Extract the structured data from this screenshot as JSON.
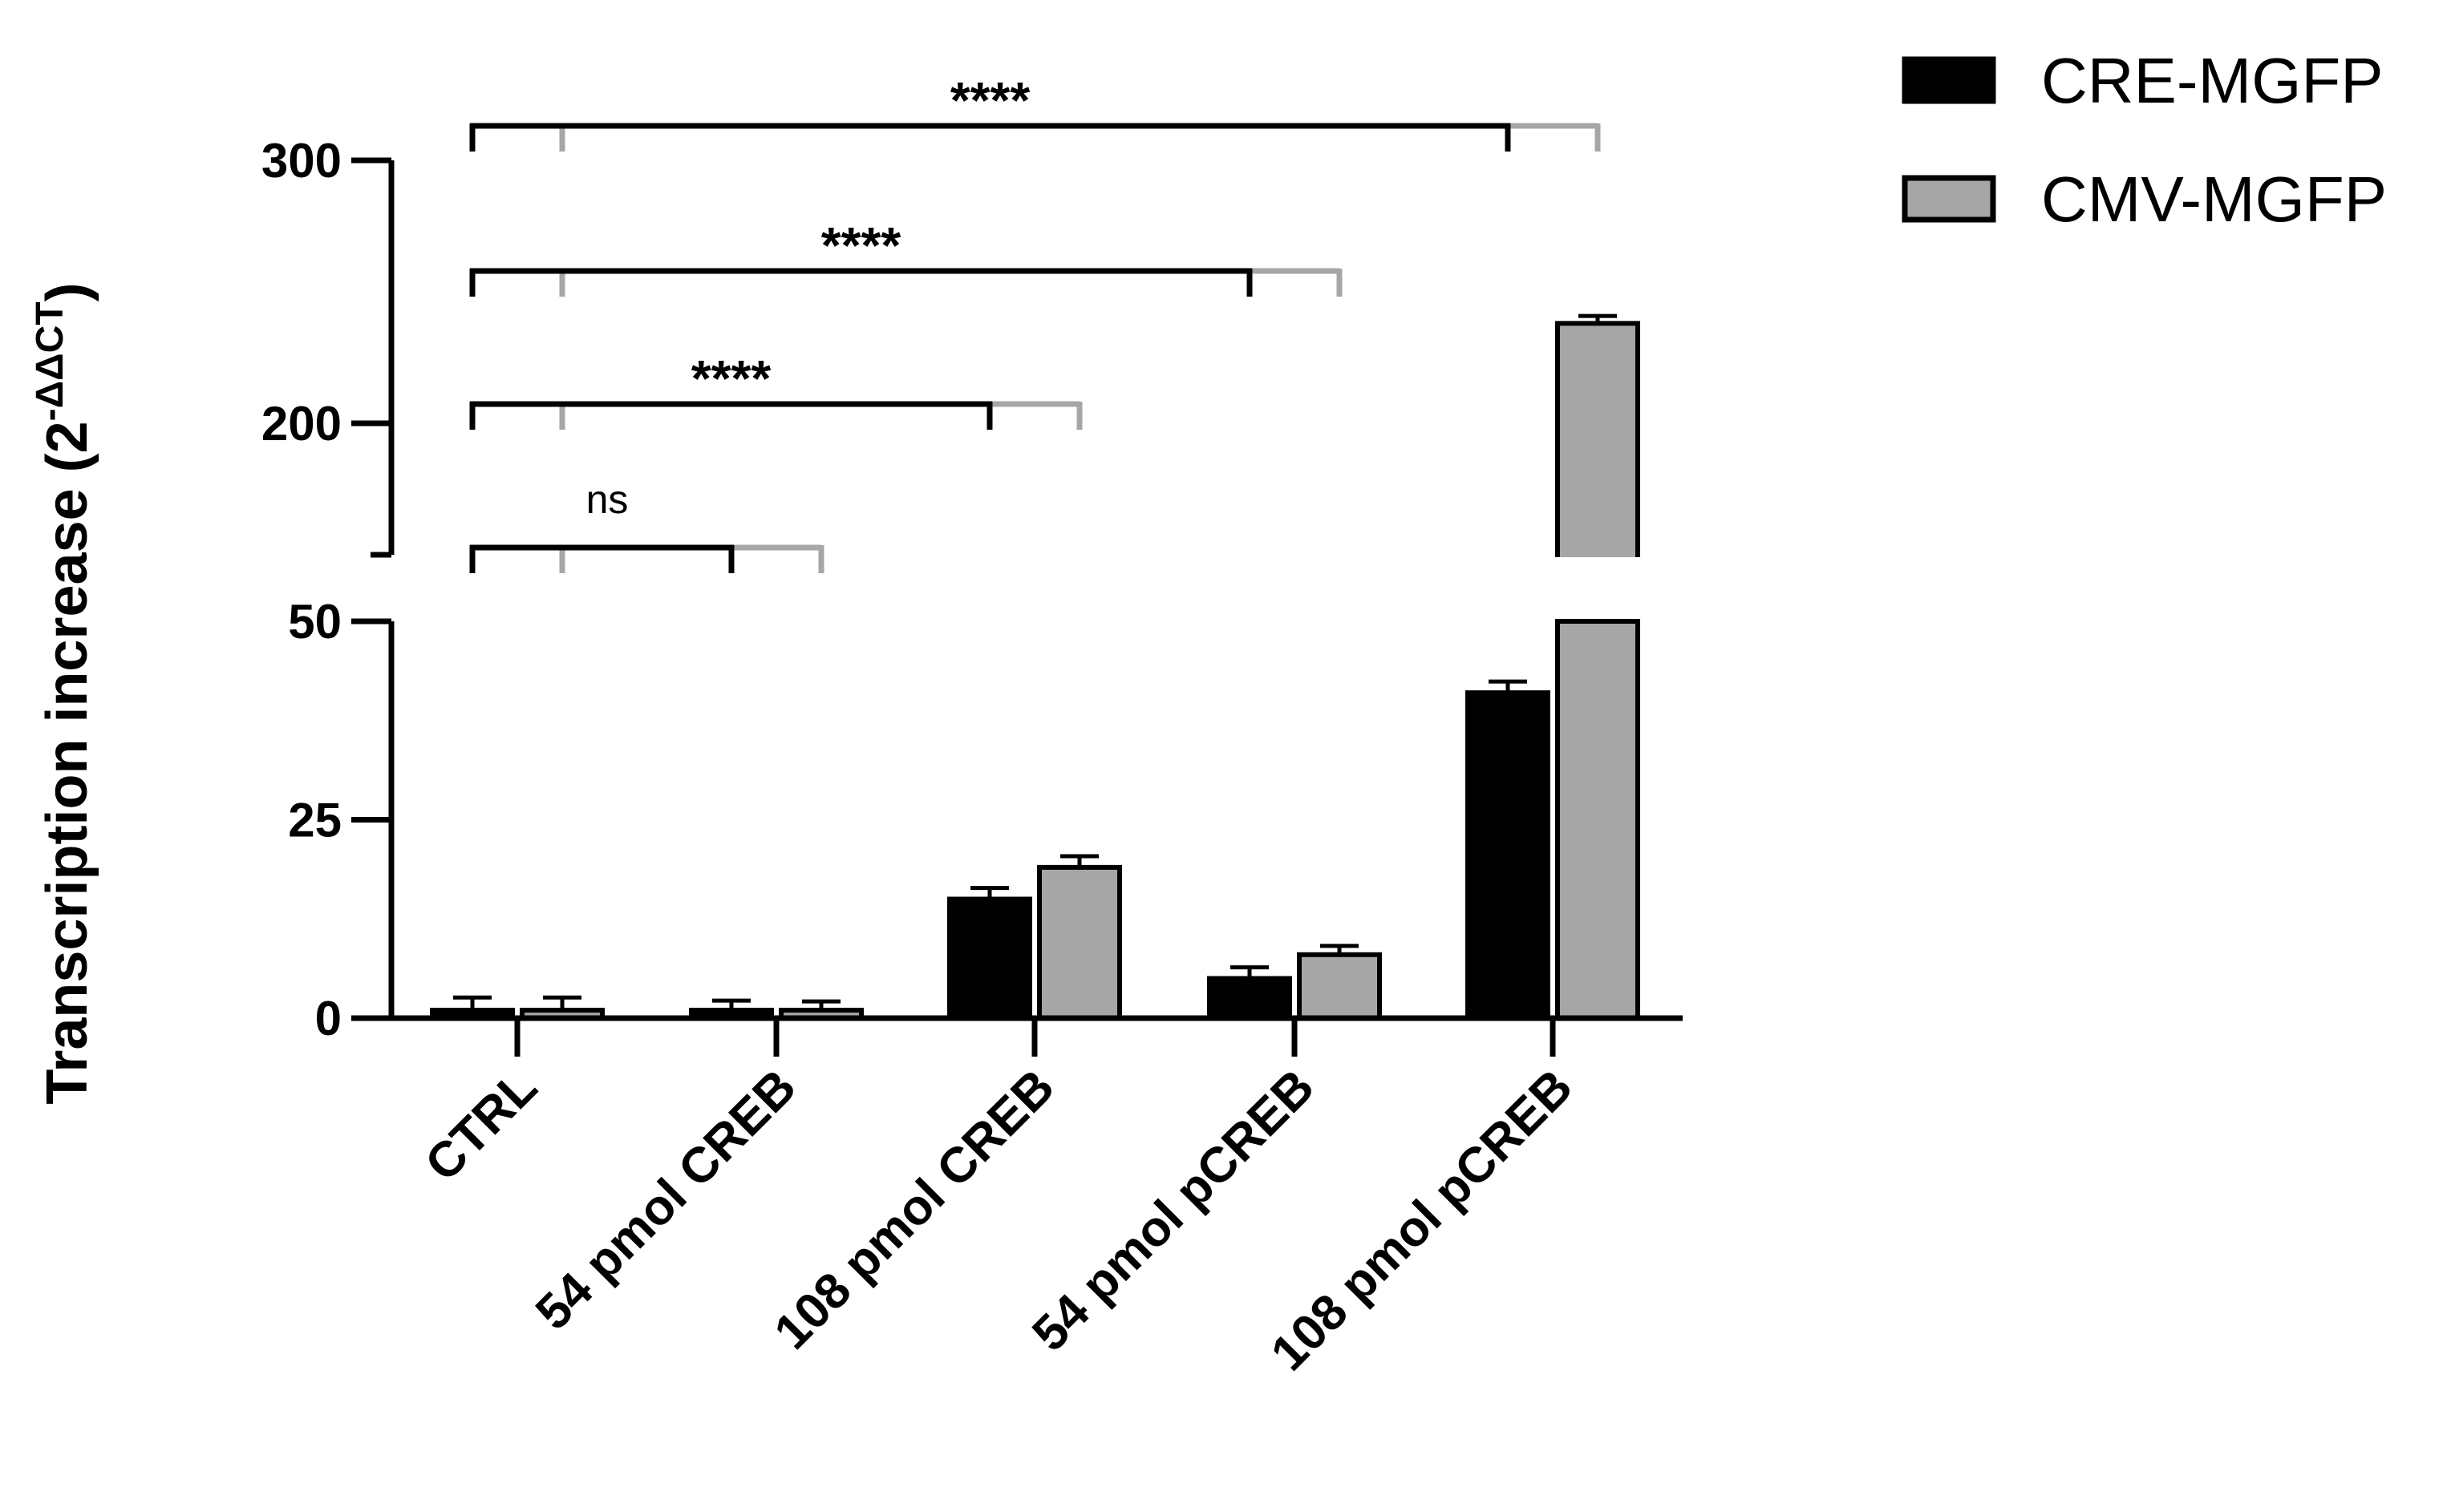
{
  "chart_data": {
    "type": "bar",
    "categories": [
      "CTRL",
      "54 pmol CREB",
      "108 pmol CREB",
      "54 pmol pCREB",
      "108 pmol pCREB"
    ],
    "series": [
      {
        "name": "CRE-MGFP",
        "color": "#000000",
        "values": [
          1,
          1,
          15,
          5,
          41
        ],
        "errors": [
          1,
          0.6,
          0.8,
          0.8,
          0.8
        ]
      },
      {
        "name": "CMV-MGFP",
        "color": "#a6a6a6",
        "values": [
          1,
          1,
          19,
          8,
          238
        ],
        "errors": [
          1,
          0.5,
          0.8,
          0.5,
          1
        ]
      }
    ],
    "title": "",
    "xlabel": "",
    "ylabel": "Transcription increase (2",
    "ylabel_superscript": "-ΔΔCT",
    "ylabel_suffix": ")",
    "y_axis_broken": true,
    "y_segments": [
      {
        "range": [
          0,
          50
        ],
        "ticks": [
          0,
          25,
          50
        ]
      },
      {
        "range": [
          150,
          300
        ],
        "ticks": [
          200,
          300
        ]
      }
    ],
    "tick_labels": {
      "y": [
        "0",
        "25",
        "50",
        "200",
        "300"
      ]
    },
    "legend_position": "top-right",
    "grid": false,
    "significance": [
      {
        "from": "CTRL",
        "to": "54 pmol CREB",
        "label": "ns"
      },
      {
        "from": "CTRL",
        "to": "108 pmol CREB",
        "label": "****"
      },
      {
        "from": "CTRL",
        "to": "54 pmol pCREB",
        "label": "****"
      },
      {
        "from": "CTRL",
        "to": "108 pmol pCREB",
        "label": "****"
      }
    ]
  }
}
